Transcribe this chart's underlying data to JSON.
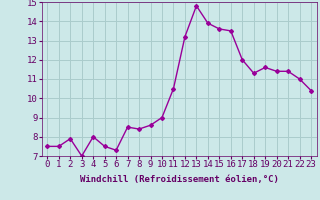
{
  "x": [
    0,
    1,
    2,
    3,
    4,
    5,
    6,
    7,
    8,
    9,
    10,
    11,
    12,
    13,
    14,
    15,
    16,
    17,
    18,
    19,
    20,
    21,
    22,
    23
  ],
  "y": [
    7.5,
    7.5,
    7.9,
    7.0,
    8.0,
    7.5,
    7.3,
    8.5,
    8.4,
    8.6,
    9.0,
    10.5,
    13.2,
    14.8,
    13.9,
    13.6,
    13.5,
    12.0,
    11.3,
    11.6,
    11.4,
    11.4,
    11.0,
    10.4
  ],
  "xlabel": "Windchill (Refroidissement éolien,°C)",
  "ylim": [
    7,
    15
  ],
  "xlim_min": -0.5,
  "xlim_max": 23.5,
  "yticks": [
    7,
    8,
    9,
    10,
    11,
    12,
    13,
    14,
    15
  ],
  "xticks": [
    0,
    1,
    2,
    3,
    4,
    5,
    6,
    7,
    8,
    9,
    10,
    11,
    12,
    13,
    14,
    15,
    16,
    17,
    18,
    19,
    20,
    21,
    22,
    23
  ],
  "line_color": "#990099",
  "marker": "D",
  "marker_size": 2,
  "bg_color": "#cce8e8",
  "grid_color": "#aacccc",
  "tick_label_color": "#660066",
  "xlabel_fontsize": 6.5,
  "tick_fontsize": 6.5,
  "line_width": 1.0
}
